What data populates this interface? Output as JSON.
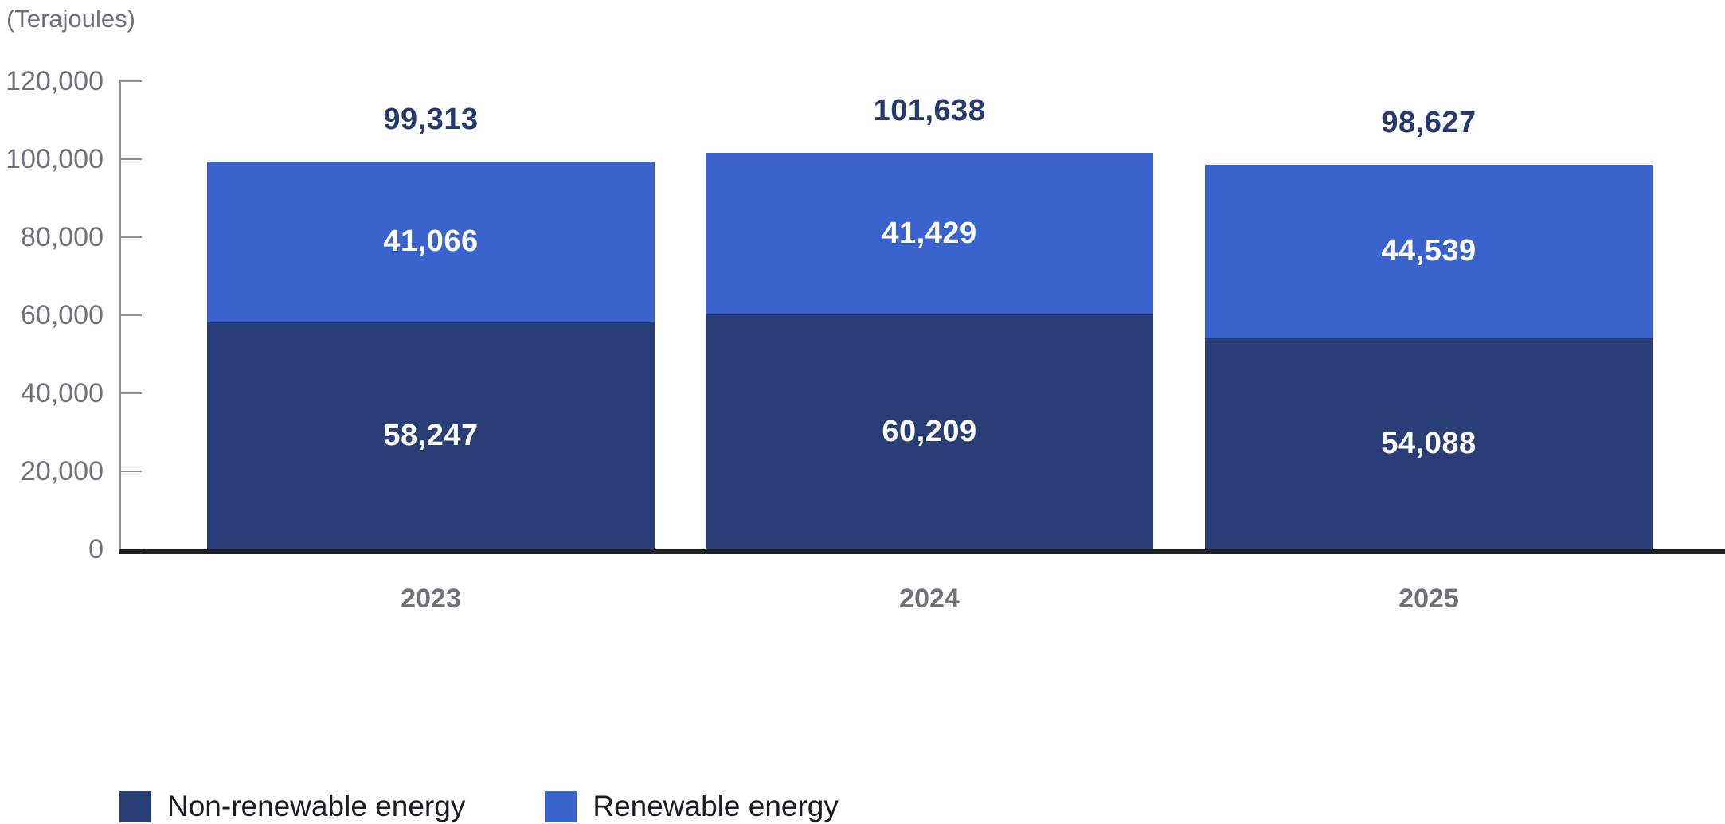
{
  "chart_data": {
    "type": "bar",
    "subtype": "stacked-vertical",
    "unit_label": "(Terajoules)",
    "categories": [
      "2023",
      "2024",
      "2025"
    ],
    "series": [
      {
        "name": "Non-renewable energy",
        "slug": "non-renewable",
        "color": "#293e77",
        "values": [
          58247,
          60209,
          54088
        ],
        "value_labels": [
          "58,247",
          "60,209",
          "54,088"
        ]
      },
      {
        "name": "Renewable energy",
        "slug": "renewable",
        "color": "#3a63ce",
        "values": [
          41066,
          41429,
          44539
        ],
        "value_labels": [
          "41,066",
          "41,429",
          "44,539"
        ]
      }
    ],
    "totals": [
      99313,
      101638,
      98627
    ],
    "total_labels": [
      "99,313",
      "101,638",
      "98,627"
    ],
    "y_axis": {
      "min": 0,
      "max": 120000,
      "tick_step": 20000,
      "tick_labels": [
        "0",
        "20,000",
        "40,000",
        "60,000",
        "80,000",
        "100,000",
        "120,000"
      ]
    },
    "grid": "off",
    "legend_position": "bottom-left",
    "colors": {
      "axis_text": "#6e7278",
      "axis_line": "#8d9196",
      "baseline": "#1f2023",
      "total_label_text": "#253a70",
      "segment_label_text": "#ffffff",
      "legend_text": "#1a1c1f"
    }
  }
}
